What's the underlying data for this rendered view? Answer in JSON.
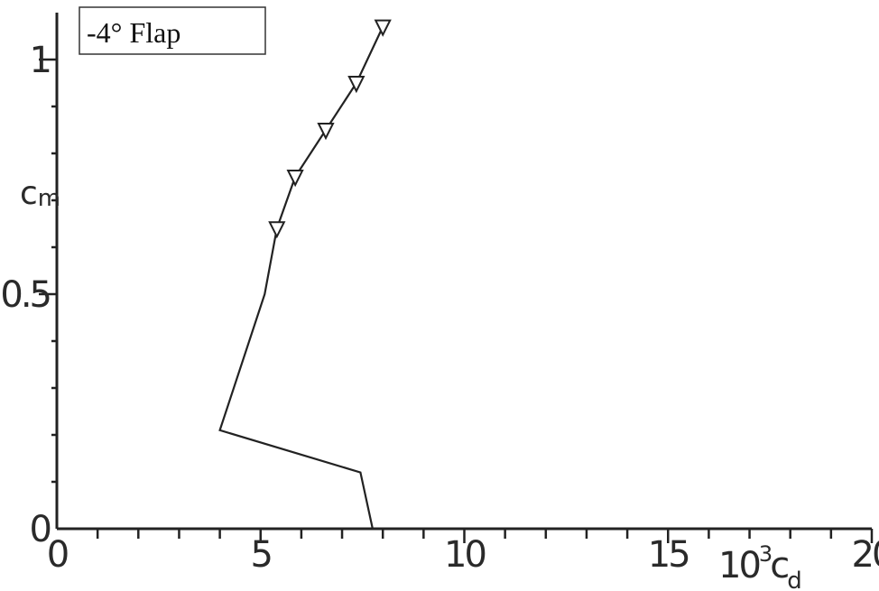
{
  "chart_data": {
    "type": "line",
    "legend": {
      "text": "-4° Flap",
      "placement": "top-left"
    },
    "xlabel": {
      "prefix": "10",
      "exponent": "3",
      "symbol": "c",
      "subscript": "d"
    },
    "ylabel": {
      "symbol": "c",
      "subscript": "m"
    },
    "xlim": [
      0,
      20
    ],
    "ylim": [
      0,
      1.1
    ],
    "x_ticks": [
      0,
      5,
      10,
      15,
      20
    ],
    "x_tick_labels": [
      "0",
      "5",
      "10",
      "15",
      "20"
    ],
    "y_ticks": [
      0,
      0.5,
      1
    ],
    "y_tick_labels": [
      "0",
      "0.5",
      "1"
    ],
    "x_minor_step": 1,
    "y_minor_step": 0.1,
    "grid": false,
    "series": [
      {
        "line": [
          [
            7.75,
            0.0
          ],
          [
            7.45,
            0.12
          ],
          [
            4.0,
            0.21
          ],
          [
            5.1,
            0.5
          ],
          [
            5.4,
            0.64
          ],
          [
            5.85,
            0.75
          ],
          [
            6.6,
            0.85
          ],
          [
            7.35,
            0.95
          ],
          [
            8.0,
            1.07
          ]
        ],
        "markers": [
          [
            5.4,
            0.64
          ],
          [
            5.85,
            0.75
          ],
          [
            6.6,
            0.85
          ],
          [
            7.35,
            0.95
          ],
          [
            8.0,
            1.07
          ]
        ],
        "marker_shape": "triangle-down"
      }
    ]
  }
}
